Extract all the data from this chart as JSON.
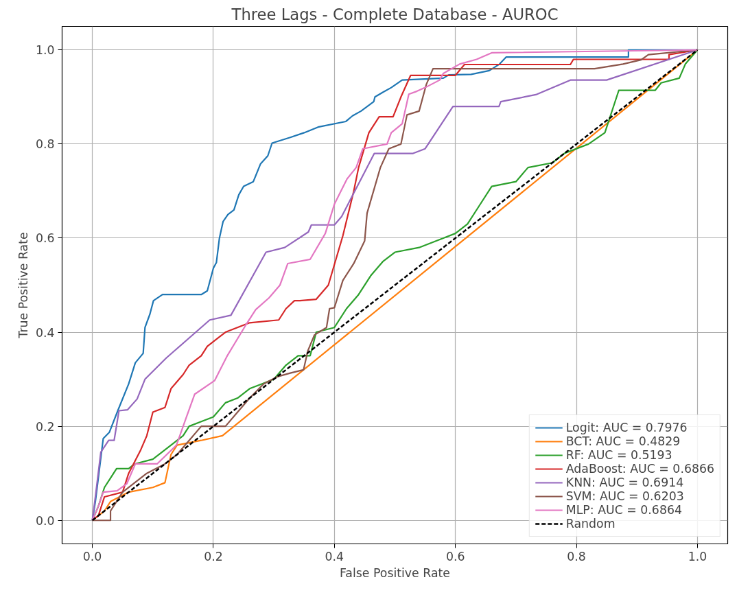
{
  "chart_data": {
    "type": "line",
    "title": "Three Lags - Complete Database - AUROC",
    "xlabel": "False Positive Rate",
    "ylabel": "True Positive Rate",
    "xlim": [
      -0.05,
      1.05
    ],
    "ylim": [
      -0.05,
      1.05
    ],
    "xticks": [
      {
        "value": 0,
        "label": "0.0"
      },
      {
        "value": 0.2,
        "label": "0.2"
      },
      {
        "value": 0.4,
        "label": "0.4"
      },
      {
        "value": 0.6,
        "label": "0.6"
      },
      {
        "value": 0.8,
        "label": "0.8"
      },
      {
        "value": 1,
        "label": "1.0"
      }
    ],
    "yticks": [
      {
        "value": 0,
        "label": "0.0"
      },
      {
        "value": 0.2,
        "label": "0.2"
      },
      {
        "value": 0.4,
        "label": "0.4"
      },
      {
        "value": 0.6,
        "label": "0.6"
      },
      {
        "value": 0.8,
        "label": "0.8"
      },
      {
        "value": 1,
        "label": "1.0"
      }
    ],
    "grid": true,
    "legend": "bottom right",
    "line_style": "solid",
    "series": [
      {
        "name": "Logit: AUC = 0.7976",
        "color": "#1f77b4",
        "x": [
          0,
          0.005,
          0.018,
          0.028,
          0.042,
          0.06,
          0.071,
          0.084,
          0.087,
          0.095,
          0.101,
          0.116,
          0.18,
          0.19,
          0.2,
          0.205,
          0.21,
          0.216,
          0.224,
          0.234,
          0.242,
          0.25,
          0.266,
          0.278,
          0.29,
          0.297,
          0.327,
          0.35,
          0.373,
          0.419,
          0.43,
          0.444,
          0.465,
          0.467,
          0.48,
          0.494,
          0.512,
          0.58,
          0.589,
          0.626,
          0.656,
          0.673,
          0.684,
          0.886,
          0.886,
          1
        ],
        "values": [
          0,
          0.04,
          0.174,
          0.187,
          0.233,
          0.29,
          0.335,
          0.355,
          0.41,
          0.438,
          0.467,
          0.48,
          0.48,
          0.488,
          0.536,
          0.548,
          0.6,
          0.635,
          0.65,
          0.66,
          0.692,
          0.71,
          0.72,
          0.758,
          0.775,
          0.802,
          0.814,
          0.824,
          0.836,
          0.848,
          0.86,
          0.87,
          0.89,
          0.9,
          0.91,
          0.92,
          0.936,
          0.94,
          0.947,
          0.948,
          0.956,
          0.97,
          0.985,
          0.985,
          1,
          1
        ]
      },
      {
        "name": "BCT: AUC = 0.4829",
        "color": "#ff7f0e",
        "x": [
          0,
          0.02,
          0.03,
          0.06,
          0.1,
          0.12,
          0.13,
          0.14,
          0.18,
          0.215,
          1
        ],
        "values": [
          0,
          0.02,
          0.04,
          0.06,
          0.07,
          0.08,
          0.14,
          0.16,
          0.17,
          0.18,
          1
        ]
      },
      {
        "name": "RF: AUC = 0.5193",
        "color": "#2ca02c",
        "x": [
          0,
          0.01,
          0.02,
          0.03,
          0.04,
          0.06,
          0.07,
          0.1,
          0.13,
          0.15,
          0.16,
          0.18,
          0.2,
          0.22,
          0.24,
          0.26,
          0.28,
          0.3,
          0.32,
          0.34,
          0.36,
          0.37,
          0.4,
          0.42,
          0.44,
          0.46,
          0.48,
          0.5,
          0.54,
          0.58,
          0.6,
          0.62,
          0.64,
          0.66,
          0.7,
          0.72,
          0.76,
          0.78,
          0.82,
          0.847,
          0.87,
          0.93,
          0.94,
          0.97,
          0.98,
          1
        ],
        "values": [
          0,
          0.03,
          0.07,
          0.09,
          0.11,
          0.11,
          0.12,
          0.13,
          0.16,
          0.18,
          0.2,
          0.21,
          0.22,
          0.25,
          0.26,
          0.28,
          0.29,
          0.3,
          0.33,
          0.35,
          0.35,
          0.4,
          0.41,
          0.45,
          0.48,
          0.52,
          0.55,
          0.57,
          0.58,
          0.6,
          0.61,
          0.63,
          0.67,
          0.71,
          0.72,
          0.75,
          0.76,
          0.78,
          0.8,
          0.824,
          0.914,
          0.914,
          0.93,
          0.94,
          0.97,
          1
        ]
      },
      {
        "name": "AdaBoost: AUC = 0.6866",
        "color": "#d62728",
        "x": [
          0,
          0.01,
          0.02,
          0.05,
          0.06,
          0.08,
          0.09,
          0.1,
          0.12,
          0.13,
          0.15,
          0.16,
          0.18,
          0.19,
          0.21,
          0.22,
          0.26,
          0.308,
          0.32,
          0.334,
          0.343,
          0.37,
          0.39,
          0.414,
          0.432,
          0.44,
          0.457,
          0.474,
          0.497,
          0.51,
          0.526,
          0.6,
          0.615,
          0.79,
          0.795,
          0.953,
          0.953,
          1
        ],
        "values": [
          0,
          0.01,
          0.05,
          0.06,
          0.1,
          0.15,
          0.18,
          0.23,
          0.24,
          0.28,
          0.31,
          0.33,
          0.35,
          0.37,
          0.39,
          0.4,
          0.42,
          0.426,
          0.45,
          0.467,
          0.467,
          0.47,
          0.5,
          0.605,
          0.7,
          0.75,
          0.824,
          0.858,
          0.858,
          0.9,
          0.946,
          0.946,
          0.969,
          0.969,
          0.98,
          0.98,
          0.99,
          1
        ]
      },
      {
        "name": "KNN: AUC = 0.6914",
        "color": "#9467bd",
        "x": [
          0,
          0.005,
          0.014,
          0.027,
          0.036,
          0.044,
          0.058,
          0.074,
          0.087,
          0.122,
          0.194,
          0.229,
          0.287,
          0.318,
          0.357,
          0.362,
          0.4,
          0.412,
          0.466,
          0.53,
          0.55,
          0.596,
          0.672,
          0.675,
          0.733,
          0.79,
          0.85,
          1
        ],
        "values": [
          0,
          0.05,
          0.145,
          0.17,
          0.17,
          0.233,
          0.235,
          0.258,
          0.3,
          0.345,
          0.426,
          0.436,
          0.57,
          0.58,
          0.613,
          0.628,
          0.628,
          0.646,
          0.78,
          0.78,
          0.79,
          0.88,
          0.88,
          0.89,
          0.905,
          0.936,
          0.936,
          1
        ]
      },
      {
        "name": "SVM: AUC = 0.6203",
        "color": "#8c564b",
        "x": [
          0,
          0.03,
          0.03,
          0.04,
          0.05,
          0.07,
          0.09,
          0.12,
          0.14,
          0.16,
          0.18,
          0.22,
          0.24,
          0.26,
          0.283,
          0.305,
          0.327,
          0.349,
          0.356,
          0.367,
          0.387,
          0.392,
          0.4,
          0.414,
          0.432,
          0.45,
          0.454,
          0.476,
          0.49,
          0.51,
          0.52,
          0.54,
          0.552,
          0.563,
          0.83,
          0.877,
          0.907,
          0.919,
          1
        ],
        "values": [
          0,
          0,
          0.02,
          0.04,
          0.06,
          0.08,
          0.1,
          0.12,
          0.14,
          0.17,
          0.2,
          0.2,
          0.23,
          0.26,
          0.29,
          0.305,
          0.313,
          0.32,
          0.36,
          0.394,
          0.41,
          0.45,
          0.452,
          0.51,
          0.546,
          0.594,
          0.653,
          0.75,
          0.79,
          0.8,
          0.862,
          0.87,
          0.927,
          0.96,
          0.96,
          0.97,
          0.979,
          0.99,
          1
        ]
      },
      {
        "name": "MLP: AUC = 0.6864",
        "color": "#e377c2",
        "x": [
          0,
          0.01,
          0.018,
          0.041,
          0.057,
          0.071,
          0.107,
          0.139,
          0.155,
          0.169,
          0.202,
          0.223,
          0.253,
          0.27,
          0.292,
          0.31,
          0.323,
          0.36,
          0.385,
          0.4,
          0.421,
          0.436,
          0.447,
          0.487,
          0.494,
          0.512,
          0.523,
          0.536,
          0.55,
          0.574,
          0.58,
          0.607,
          0.635,
          0.66,
          1
        ],
        "values": [
          0,
          0.03,
          0.06,
          0.063,
          0.078,
          0.12,
          0.12,
          0.16,
          0.218,
          0.268,
          0.297,
          0.35,
          0.414,
          0.448,
          0.473,
          0.5,
          0.546,
          0.555,
          0.61,
          0.672,
          0.726,
          0.75,
          0.79,
          0.8,
          0.824,
          0.843,
          0.906,
          0.912,
          0.92,
          0.936,
          0.95,
          0.97,
          0.98,
          0.994,
          1
        ]
      },
      {
        "name": "Random",
        "color": "#000000",
        "line_style": "dashed",
        "x": [
          0,
          1
        ],
        "values": [
          0,
          1
        ]
      }
    ]
  }
}
